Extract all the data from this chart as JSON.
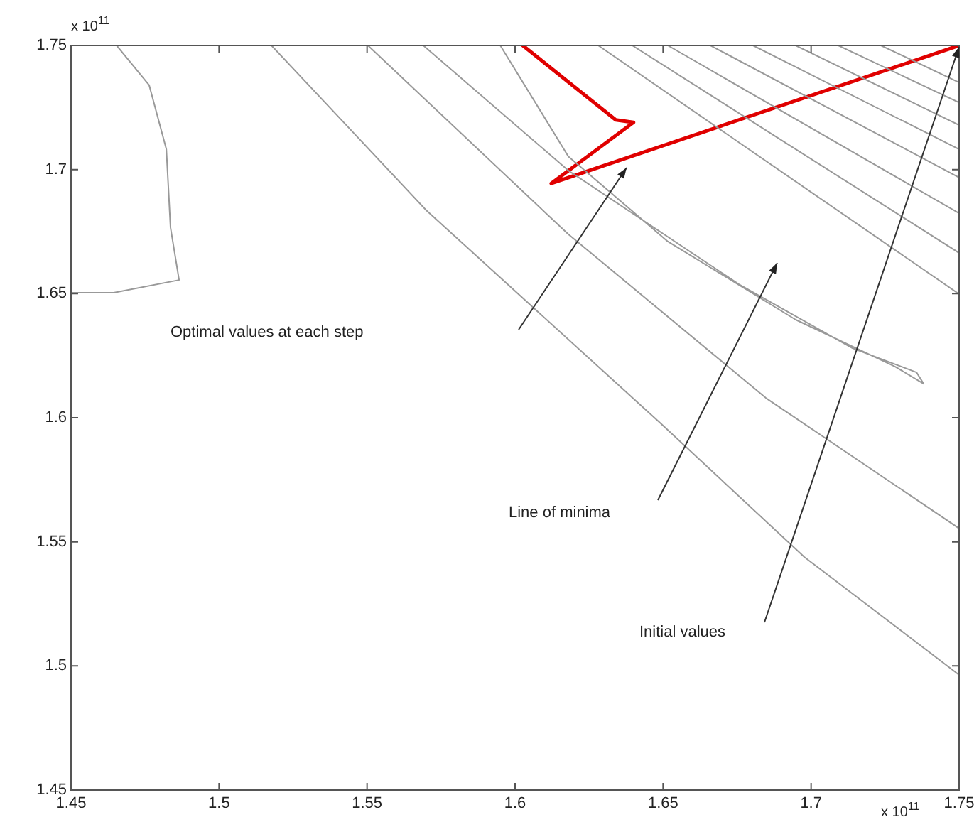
{
  "chart_data": {
    "type": "line",
    "xlim": [
      1.45,
      1.75
    ],
    "ylim": [
      1.45,
      1.75
    ],
    "xticks": [
      1.45,
      1.5,
      1.55,
      1.6,
      1.65,
      1.7,
      1.75
    ],
    "yticks": [
      1.45,
      1.5,
      1.55,
      1.6,
      1.65,
      1.7,
      1.75
    ],
    "grid": false,
    "legend": false,
    "marker": "none",
    "line_style": "solid",
    "series": [
      {
        "color": "#999999",
        "x": [
          1.45,
          1.4644,
          1.4865,
          1.4836,
          1.4822,
          1.4764,
          1.4654
        ],
        "values": [
          1.6504,
          1.6504,
          1.6555,
          1.6767,
          1.7082,
          1.734,
          1.75
        ]
      },
      {
        "color": "#999999",
        "x": [
          1.5177,
          1.57,
          1.6492,
          1.6977,
          1.75
        ],
        "values": [
          1.75,
          1.6836,
          1.5977,
          1.5439,
          1.4964
        ]
      },
      {
        "color": "#999999",
        "x": [
          1.5503,
          1.618,
          1.6847,
          1.75
        ],
        "values": [
          1.75,
          1.6739,
          1.608,
          1.5554
        ]
      },
      {
        "color": "#999999",
        "x": [
          1.569,
          1.618,
          1.6756,
          1.714,
          1.7356,
          1.738,
          1.7284,
          1.6948,
          1.6516,
          1.618,
          1.595
        ],
        "values": [
          1.75,
          1.6996,
          1.6538,
          1.628,
          1.6183,
          1.6137,
          1.6206,
          1.6395,
          1.671,
          1.7053,
          1.75
        ]
      },
      {
        "color": "#999999",
        "x": [
          1.6281,
          1.75
        ],
        "values": [
          1.75,
          1.6498
        ]
      },
      {
        "color": "#999999",
        "x": [
          1.6396,
          1.75
        ],
        "values": [
          1.75,
          1.6664
        ]
      },
      {
        "color": "#999999",
        "x": [
          1.6516,
          1.75
        ],
        "values": [
          1.75,
          1.6824
        ]
      },
      {
        "color": "#999999",
        "x": [
          1.666,
          1.75
        ],
        "values": [
          1.75,
          1.6968
        ]
      },
      {
        "color": "#999999",
        "x": [
          1.6804,
          1.75
        ],
        "values": [
          1.75,
          1.7082
        ]
      },
      {
        "color": "#999999",
        "x": [
          1.6948,
          1.75
        ],
        "values": [
          1.75,
          1.7179
        ]
      },
      {
        "color": "#999999",
        "x": [
          1.7092,
          1.75
        ],
        "values": [
          1.75,
          1.727
        ]
      },
      {
        "color": "#999999",
        "x": [
          1.7236,
          1.75
        ],
        "values": [
          1.75,
          1.7351
        ]
      },
      {
        "color": "#e00000",
        "x": [
          1.75,
          1.6122,
          1.64,
          1.634,
          1.6026
        ],
        "values": [
          1.75,
          1.6944,
          1.719,
          1.72,
          1.75
        ]
      }
    ],
    "annotations": [
      "Optimal values at each step",
      "Line of minima",
      "Initial values",
      "x 10$^{11}$",
      "x 10$^{11}$"
    ]
  }
}
